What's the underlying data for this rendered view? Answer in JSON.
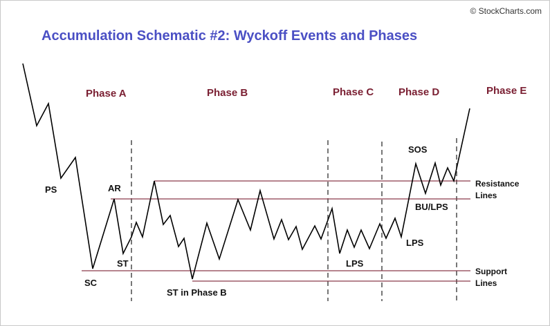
{
  "credit": "© StockCharts.com",
  "title": "Accumulation Schematic #2: Wyckoff Events and Phases",
  "phases": {
    "a": "Phase A",
    "b": "Phase B",
    "c": "Phase C",
    "d": "Phase D",
    "e": "Phase E"
  },
  "events": {
    "ps": "PS",
    "sc": "SC",
    "ar": "AR",
    "st": "ST",
    "st_phase_b": "ST in Phase B",
    "lps_c": "LPS",
    "lps_d": "LPS",
    "bu_lps": "BU/LPS",
    "sos": "SOS"
  },
  "side_labels": {
    "resistance_1": "Resistance",
    "resistance_2": "Lines",
    "support_1": "Support",
    "support_2": "Lines"
  },
  "colors": {
    "title": "#4a4fc4",
    "phase_label": "#7a1f32",
    "level_line": "#8b3a4a",
    "price_line": "#000000",
    "divider": "#555555"
  }
}
